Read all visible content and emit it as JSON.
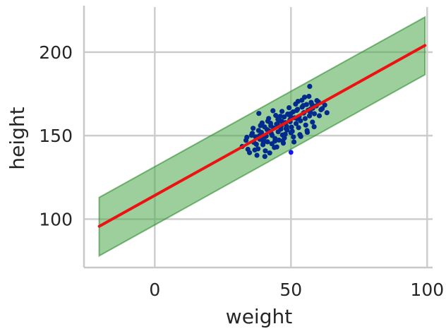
{
  "chart_data": {
    "type": "scatter",
    "title": "",
    "xlabel": "weight",
    "ylabel": "height",
    "xlim": [
      -26,
      102
    ],
    "ylim": [
      71,
      227
    ],
    "xticks": [
      0,
      50,
      100
    ],
    "yticks": [
      100,
      150,
      200
    ],
    "grid": true,
    "colors": {
      "points_dense": "#002a8c",
      "points_outlier": "#1414ff",
      "fit_line": "#ee1111",
      "band_fill": "#4aa84a",
      "band_edge": "#2e8b2e",
      "grid": "#cccccc",
      "spine": "#c8c8c8"
    },
    "fit_line": {
      "x": [
        -20.4,
        99.2
      ],
      "y": [
        95.7,
        204
      ]
    },
    "prediction_band": {
      "x": [
        -20.4,
        99.2
      ],
      "lower": [
        78,
        186.5
      ],
      "upper": [
        113,
        221
      ]
    },
    "points": {
      "x": [
        32.1,
        33.5,
        34.2,
        35.8,
        36.4,
        37.0,
        37.5,
        38.1,
        38.6,
        39.2,
        39.7,
        40.3,
        40.9,
        41.4,
        42.0,
        42.5,
        43.1,
        43.6,
        44.2,
        44.7,
        45.3,
        45.8,
        46.4,
        46.9,
        47.5,
        48.0,
        48.6,
        49.1,
        49.7,
        50.2,
        50.8,
        51.3,
        51.9,
        52.4,
        53.0,
        53.5,
        54.1,
        54.6,
        55.2,
        55.7,
        56.3,
        56.8,
        57.4,
        58.0,
        58.6,
        59.3,
        60.1,
        61.0,
        62.4,
        63.2,
        34.8,
        36.1,
        37.9,
        39.4,
        40.6,
        41.8,
        43.0,
        44.4,
        45.6,
        46.7,
        47.9,
        49.3,
        50.5,
        51.7,
        52.8,
        54.0,
        55.4,
        56.6,
        57.9,
        59.5,
        35.5,
        37.3,
        38.8,
        40.1,
        41.5,
        42.8,
        44.1,
        45.2,
        46.3,
        47.6,
        48.8,
        50.0,
        51.1,
        52.3,
        53.6,
        54.8,
        56.0,
        57.2,
        58.5,
        60.4,
        36.7,
        38.4,
        39.9,
        41.2,
        42.6,
        43.9,
        45.0,
        46.1,
        47.2,
        48.4,
        49.6,
        50.9,
        52.1,
        53.3,
        54.5,
        55.9,
        57.1,
        33.8,
        40.4,
        42.2,
        44.8,
        47.0,
        49.9,
        52.6,
        55.0,
        57.7,
        43.4,
        46.6,
        48.2,
        50.0,
        56.9,
        38.2,
        61.5
      ],
      "y": [
        143.5,
        147.2,
        141.8,
        151.4,
        145.9,
        149.3,
        138.2,
        153.1,
        147.8,
        151.9,
        144.6,
        155.2,
        149.7,
        146.3,
        152.8,
        157.4,
        150.1,
        154.6,
        148.2,
        156.9,
        152.3,
        159.1,
        155.7,
        150.4,
        161.2,
        157.8,
        153.4,
        162.6,
        158.3,
        155.1,
        164.2,
        160.7,
        157.2,
        165.8,
        161.4,
        158.9,
        167.1,
        163.5,
        160.2,
        168.6,
        165.2,
        161.8,
        169.9,
        166.4,
        163.1,
        167.8,
        170.2,
        165.5,
        168.3,
        163.7,
        139.8,
        154.4,
        142.1,
        157.6,
        140.9,
        160.3,
        145.1,
        162.1,
        147.3,
        164.5,
        150.9,
        166.7,
        152.6,
        168.9,
        154.8,
        171.2,
        156.3,
        173.5,
        158.1,
        171.0,
        150.2,
        144.8,
        156.0,
        148.4,
        158.7,
        151.2,
        146.7,
        159.8,
        153.9,
        148.6,
        162.9,
        151.7,
        146.2,
        160.1,
        149.5,
        163.8,
        152.0,
        166.0,
        155.3,
        161.9,
        141.4,
        149.9,
        146.0,
        153.6,
        155.9,
        142.9,
        157.1,
        161.6,
        145.5,
        155.6,
        159.4,
        149.2,
        165.1,
        150.6,
        168.0,
        153.0,
        164.0,
        149.0,
        137.5,
        139.6,
        143.2,
        146.8,
        163.1,
        170.5,
        173.0,
        168.7,
        164.9,
        158.6,
        154.2,
        160.9,
        179.5,
        163.3,
        166.2
      ],
      "outlier": {
        "x": 50.0,
        "y": 140.0
      }
    }
  }
}
